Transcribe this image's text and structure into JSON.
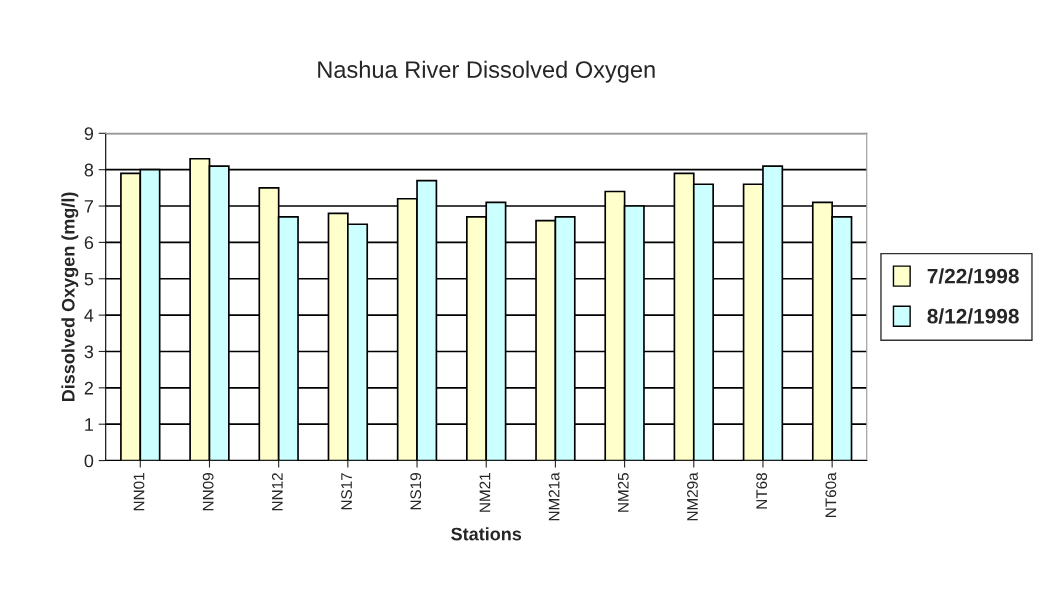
{
  "chart_data": {
    "type": "bar",
    "title": "Nashua River Dissolved Oxygen",
    "xlabel": "Stations",
    "ylabel": "Dissolved Oxygen (mg/l)",
    "categories": [
      "NN01",
      "NN09",
      "NN12",
      "NS17",
      "NS19",
      "NM21",
      "NM21a",
      "NM25",
      "NM29a",
      "NT68",
      "NT60a"
    ],
    "series": [
      {
        "name": "7/22/1998",
        "color": "#ffffcc",
        "values": [
          7.9,
          8.3,
          7.5,
          6.8,
          7.2,
          6.7,
          6.6,
          7.4,
          7.9,
          7.6,
          7.1
        ]
      },
      {
        "name": "8/12/1998",
        "color": "#ccffff",
        "values": [
          8.0,
          8.1,
          6.7,
          6.5,
          7.7,
          7.1,
          6.7,
          7.0,
          7.6,
          8.1,
          6.7
        ]
      }
    ],
    "ylim": [
      0,
      9
    ],
    "yticks": [
      0,
      1,
      2,
      3,
      4,
      5,
      6,
      7,
      8,
      9
    ],
    "grid": "y",
    "legend": "right"
  }
}
